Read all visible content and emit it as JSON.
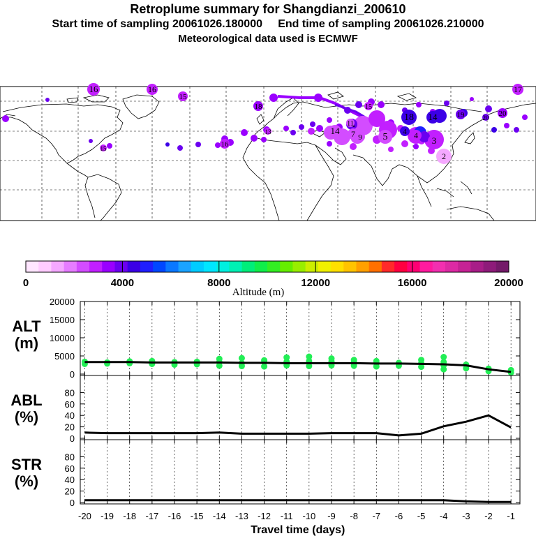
{
  "header": {
    "title": "Retroplume summary for Shangdianzi_200610",
    "start_label": "Start time of sampling 20061026.180000",
    "end_label": "End time of sampling 20061026.210000",
    "met_label": "Meteorological data used is ECMWF"
  },
  "colors": {
    "scale": [
      "#ffe6ff",
      "#ffccff",
      "#f5a8ff",
      "#e67cff",
      "#d34cff",
      "#c21fff",
      "#9a00ff",
      "#6b00f0",
      "#3b00e6",
      "#1f1fff",
      "#0047ff",
      "#0a78ff",
      "#1aa3ff",
      "#00ccff",
      "#00e6ff",
      "#00f0e0",
      "#00f0b4",
      "#00ee7a",
      "#10ee4a",
      "#33ee22",
      "#66ee00",
      "#99ee00",
      "#ccee00",
      "#f0f000",
      "#ffe000",
      "#ffc400",
      "#ffa000",
      "#ff7000",
      "#ff2a2a",
      "#ff0040",
      "#ff0073",
      "#ff1a9f",
      "#f22fb0",
      "#dd2aa4",
      "#c62295",
      "#a81d88",
      "#8e1b7a",
      "#741a69"
    ],
    "obs_points": "#22ee55",
    "line": "#000000"
  },
  "map_labels": [
    {
      "text": "16",
      "color": "#c21fff"
    },
    {
      "text": "16",
      "color": "#c21fff"
    },
    {
      "text": "15",
      "color": "#c21fff"
    },
    {
      "text": "17",
      "color": "#c21fff"
    },
    {
      "text": "15",
      "color": "#c21fff"
    },
    {
      "text": "18",
      "color": "#9a00ff"
    },
    {
      "text": "20",
      "color": "#9a00ff"
    },
    {
      "text": "19",
      "color": "#6b00f0"
    },
    {
      "text": "18",
      "color": "#3b00e6"
    },
    {
      "text": "14",
      "color": "#3b00e6"
    },
    {
      "text": "20",
      "color": "#6b00f0"
    },
    {
      "text": "11",
      "color": "#6b00f0"
    },
    {
      "text": "13",
      "color": "#c21fff"
    },
    {
      "text": "11",
      "color": "#d34cff"
    },
    {
      "text": "14",
      "color": "#d34cff"
    },
    {
      "text": "7",
      "color": "#d34cff"
    },
    {
      "text": "9",
      "color": "#d34cff"
    },
    {
      "text": "5",
      "color": "#d34cff"
    },
    {
      "text": "4",
      "color": "#c21fff"
    },
    {
      "text": "4",
      "color": "#3b00e6"
    },
    {
      "text": "3",
      "color": "#c21fff"
    },
    {
      "text": "2",
      "color": "#f5a8ff"
    },
    {
      "text": "16",
      "color": "#c21fff"
    },
    {
      "text": "15",
      "color": "#c21fff"
    }
  ],
  "colorbar": {
    "ticks": [
      "0",
      "4000",
      "8000",
      "12000",
      "16000",
      "20000"
    ],
    "label": "Altitude (m)"
  },
  "chart_data": [
    {
      "type": "line",
      "name": "ALT",
      "ylabel": "ALT\n(m)",
      "ylabel_lines": [
        "ALT",
        "(m)"
      ],
      "ylim": [
        0,
        20000
      ],
      "yticks": [
        "0",
        "5000",
        "10000",
        "15000",
        "20000"
      ],
      "x": [
        -20,
        -19,
        -18,
        -17,
        -16,
        -15,
        -14,
        -13,
        -12,
        -11,
        -10,
        -9,
        -8,
        -7,
        -6,
        -5,
        -4,
        -3,
        -2,
        -1
      ],
      "values": [
        3300,
        3300,
        3300,
        3200,
        3200,
        3200,
        3200,
        3100,
        3100,
        3000,
        3000,
        3000,
        3000,
        2900,
        2900,
        2800,
        2700,
        2400,
        1300,
        600
      ],
      "points": [
        [
          -20,
          2800
        ],
        [
          -20,
          3400
        ],
        [
          -19,
          2900
        ],
        [
          -19,
          3200
        ],
        [
          -18,
          3000
        ],
        [
          -18,
          3500
        ],
        [
          -17,
          2800
        ],
        [
          -17,
          3600
        ],
        [
          -16,
          2600
        ],
        [
          -16,
          3300
        ],
        [
          -15,
          2700
        ],
        [
          -15,
          3400
        ],
        [
          -14,
          2300
        ],
        [
          -14,
          3300
        ],
        [
          -14,
          4200
        ],
        [
          -13,
          2200
        ],
        [
          -13,
          3000
        ],
        [
          -13,
          4400
        ],
        [
          -12,
          2100
        ],
        [
          -12,
          3300
        ],
        [
          -12,
          3800
        ],
        [
          -11,
          2400
        ],
        [
          -11,
          3400
        ],
        [
          -11,
          4600
        ],
        [
          -10,
          2200
        ],
        [
          -10,
          3600
        ],
        [
          -10,
          4800
        ],
        [
          -9,
          2400
        ],
        [
          -9,
          3500
        ],
        [
          -9,
          4300
        ],
        [
          -8,
          2300
        ],
        [
          -8,
          3200
        ],
        [
          -8,
          3900
        ],
        [
          -7,
          2100
        ],
        [
          -7,
          3000
        ],
        [
          -7,
          3600
        ],
        [
          -6,
          2300
        ],
        [
          -6,
          3100
        ],
        [
          -5,
          2000
        ],
        [
          -5,
          3000
        ],
        [
          -5,
          3900
        ],
        [
          -4,
          1300
        ],
        [
          -4,
          2400
        ],
        [
          -4,
          3300
        ],
        [
          -4,
          4700
        ],
        [
          -3,
          1600
        ],
        [
          -3,
          2600
        ],
        [
          -2,
          800
        ],
        [
          -2,
          1500
        ],
        [
          -1,
          400
        ],
        [
          -1,
          1100
        ]
      ]
    },
    {
      "type": "line",
      "name": "ABL",
      "ylabel": "ABL\n(%)",
      "ylabel_lines": [
        "ABL",
        "(%)"
      ],
      "ylim": [
        0,
        100
      ],
      "yticks": [
        "0",
        "20",
        "40",
        "60",
        "80"
      ],
      "x": [
        -20,
        -19,
        -18,
        -17,
        -16,
        -15,
        -14,
        -13,
        -12,
        -11,
        -10,
        -9,
        -8,
        -7,
        -6,
        -5,
        -4,
        -3,
        -2,
        -1
      ],
      "values": [
        10,
        9,
        9,
        9,
        9,
        9,
        10,
        8,
        8,
        8,
        8,
        9,
        9,
        9,
        5,
        8,
        21,
        29,
        40,
        19
      ]
    },
    {
      "type": "line",
      "name": "STR",
      "ylabel": "STR\n(%)",
      "ylabel_lines": [
        "STR",
        "(%)"
      ],
      "ylim": [
        0,
        100
      ],
      "yticks": [
        "0",
        "20",
        "40",
        "60",
        "80"
      ],
      "x": [
        -20,
        -19,
        -18,
        -17,
        -16,
        -15,
        -14,
        -13,
        -12,
        -11,
        -10,
        -9,
        -8,
        -7,
        -6,
        -5,
        -4,
        -3,
        -2,
        -1
      ],
      "values": [
        4,
        4,
        4,
        4,
        4,
        4,
        4,
        4,
        4,
        4,
        4,
        4,
        4,
        4,
        4,
        4,
        4,
        2,
        1,
        1
      ],
      "xlabel": "Travel time (days)",
      "xticks": [
        "-20",
        "-19",
        "-18",
        "-17",
        "-16",
        "-15",
        "-14",
        "-13",
        "-12",
        "-11",
        "-10",
        "-9",
        "-8",
        "-7",
        "-6",
        "-5",
        "-4",
        "-3",
        "-2",
        "-1"
      ]
    }
  ]
}
